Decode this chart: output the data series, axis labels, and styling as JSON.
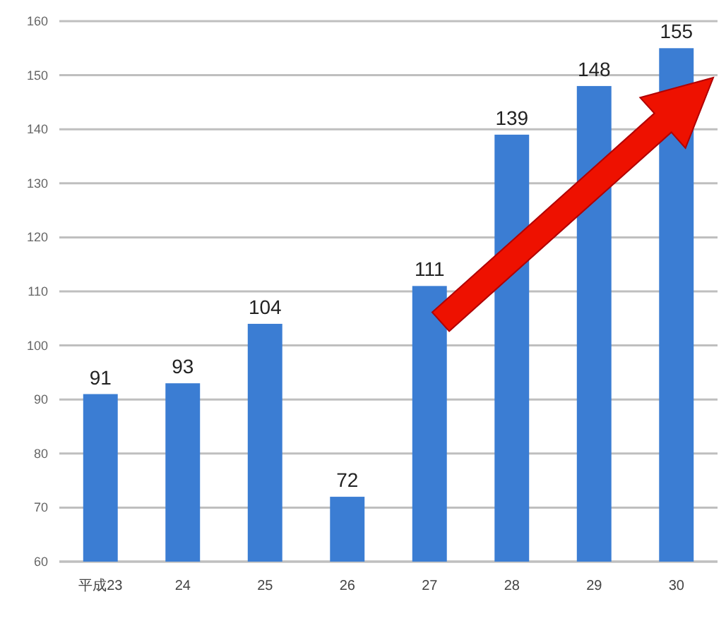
{
  "chart_data": {
    "type": "bar",
    "categories": [
      "平成23",
      "24",
      "25",
      "26",
      "27",
      "28",
      "29",
      "30"
    ],
    "values": [
      91,
      93,
      104,
      72,
      111,
      139,
      148,
      155
    ],
    "color": "#3b7dd3",
    "ylim": [
      60,
      160
    ],
    "yticks": [
      60,
      70,
      80,
      90,
      100,
      110,
      120,
      130,
      140,
      150,
      160
    ],
    "grid": "y",
    "data_labels": true
  }
}
